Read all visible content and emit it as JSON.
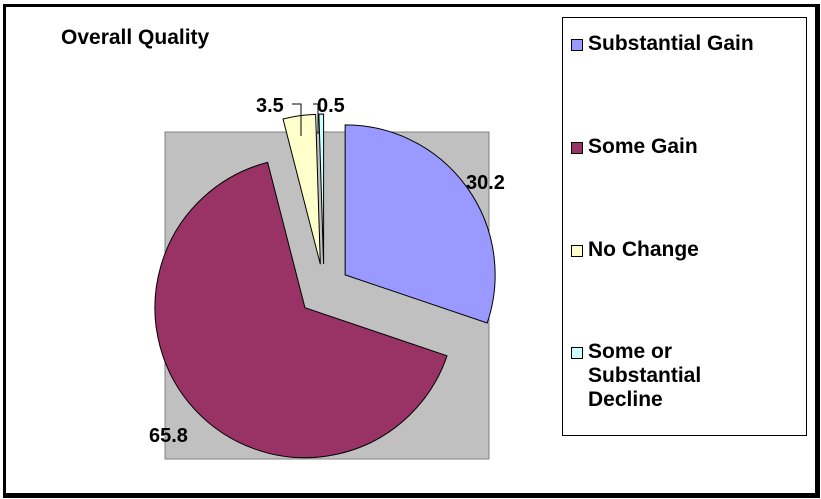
{
  "chart_data": {
    "type": "pie",
    "title": "Overall Quality",
    "slices": [
      {
        "name": "Substantial Gain",
        "value": 30.2,
        "color": "#9999ff"
      },
      {
        "name": "Some Gain",
        "value": 65.8,
        "color": "#993366"
      },
      {
        "name": "No Change",
        "value": 3.5,
        "color": "#ffffcc"
      },
      {
        "name": "Some or Substantial Decline",
        "value": 0.5,
        "color": "#ccffff"
      }
    ],
    "data_labels": [
      "30.2",
      "65.8",
      "3.5",
      "0.5"
    ],
    "plot_background": "#c0c0c0",
    "exploded": true,
    "legend": {
      "placement": "right",
      "items": [
        "Substantial Gain",
        "Some Gain",
        "No Change",
        "Some or Substantial Decline"
      ],
      "item_lines": [
        [
          "Substantial Gain"
        ],
        [
          "Some Gain"
        ],
        [
          "No Change"
        ],
        [
          "Some or",
          "Substantial",
          "Decline"
        ]
      ]
    }
  }
}
